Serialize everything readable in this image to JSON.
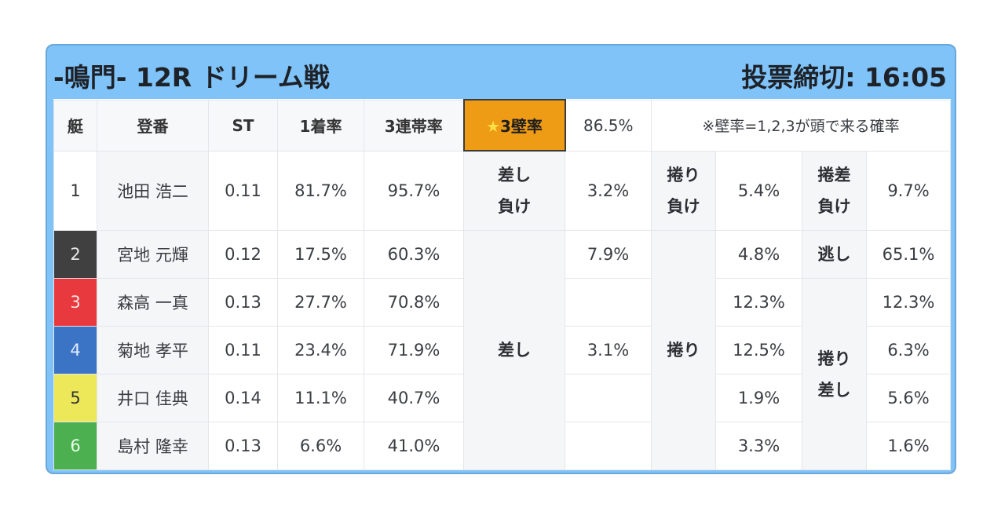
{
  "header": {
    "title": "-鳴門- 12R ドリーム戦",
    "deadline": "投票締切: 16:05"
  },
  "columns": {
    "lane": "艇",
    "name": "登番",
    "st": "ST",
    "first_rate": "1着率",
    "top3_rate": "3連帯率",
    "star_prefix": "★",
    "wall_label": "3壁率",
    "wall_value": "86.5%",
    "note": "※壁率=1,2,3が頭で来る確率"
  },
  "colors": {
    "lane1": "#ffffff",
    "lane2": "#404040",
    "lane3": "#e8393f",
    "lane4": "#3b74c4",
    "lane5": "#ece85a",
    "lane6": "#4caf50",
    "accent": "#ee9b15",
    "frame": "#7fc3f8"
  },
  "rows": [
    {
      "lane": "1",
      "name": "池田 浩二",
      "st": "0.11",
      "first": "81.7%",
      "top3": "95.7%",
      "a": "3.2%",
      "b": "5.4%",
      "c": "9.7%"
    },
    {
      "lane": "2",
      "name": "宮地 元輝",
      "st": "0.12",
      "first": "17.5%",
      "top3": "60.3%",
      "a": "7.9%",
      "b": "4.8%",
      "c": "65.1%"
    },
    {
      "lane": "3",
      "name": "森高 一真",
      "st": "0.13",
      "first": "27.7%",
      "top3": "70.8%",
      "a": "",
      "b": "12.3%",
      "c": "12.3%"
    },
    {
      "lane": "4",
      "name": "菊地 孝平",
      "st": "0.11",
      "first": "23.4%",
      "top3": "71.9%",
      "a": "3.1%",
      "b": "12.5%",
      "c": "6.3%"
    },
    {
      "lane": "5",
      "name": "井口 佳典",
      "st": "0.14",
      "first": "11.1%",
      "top3": "40.7%",
      "a": "",
      "b": "1.9%",
      "c": "5.6%"
    },
    {
      "lane": "6",
      "name": "島村 隆幸",
      "st": "0.13",
      "first": "6.6%",
      "top3": "41.0%",
      "a": "",
      "b": "3.3%",
      "c": "1.6%"
    }
  ],
  "kinds": {
    "sashi_make_1": "差し",
    "sashi_make_2": "負け",
    "makuri_make_1": "捲り",
    "makuri_make_2": "負け",
    "makurisashi_make_1": "捲差",
    "makurisashi_make_2": "負け",
    "nigashi": "逃し",
    "sashi": "差し",
    "makuri": "捲り",
    "makurisashi_1": "捲り",
    "makurisashi_2": "差し"
  }
}
